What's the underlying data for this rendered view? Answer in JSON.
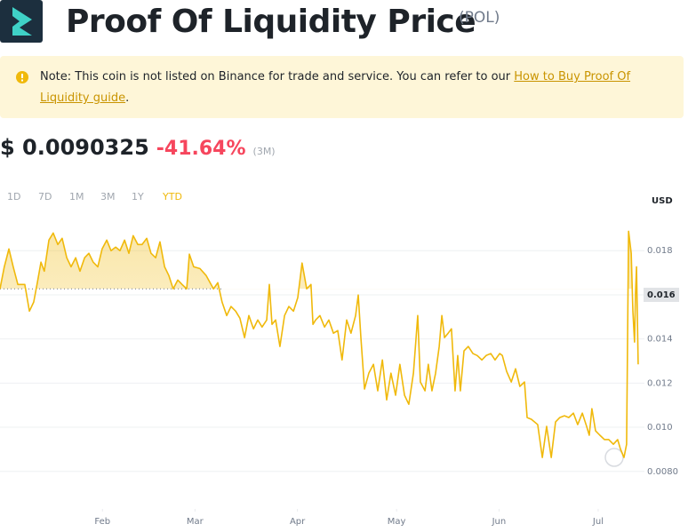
{
  "header": {
    "title": "Proof Of Liquidity Price",
    "symbol": "(POL)"
  },
  "note": {
    "text": "Note: This coin is not listed on Binance for trade and service. You can refer to our ",
    "link": "How to Buy Proof Of Liquidity guide",
    "end": "."
  },
  "price": {
    "value": "$ 0.0090325",
    "change": "-41.64%",
    "period": "(3M)"
  },
  "ranges": [
    "1D",
    "7D",
    "1M",
    "3M",
    "1Y",
    "YTD"
  ],
  "active_range": "YTD",
  "chart_data": {
    "type": "line",
    "y_unit": "USD",
    "color": "#f0b90b",
    "x": [
      0,
      1.3,
      2.7,
      4.0,
      5.4,
      7.5,
      8.9,
      10.2,
      11.3,
      12.4,
      13.4,
      14.8,
      16.1,
      17.5,
      18.8,
      20.2,
      21.5,
      22.9,
      24.2,
      25.6,
      26.9,
      28.2,
      29.6,
      30.9,
      32.3,
      33.6,
      35.0,
      36.3,
      37.7,
      39.0,
      40.3,
      41.7,
      43.0,
      44.4,
      45.7,
      47.1,
      48.4,
      49.8,
      51.1,
      52.4,
      53.8,
      55.1,
      56.5,
      57.3,
      58.6,
      60.5,
      62.4,
      64.6,
      65.9,
      67.2,
      68.6,
      69.9,
      71.3,
      72.6,
      74.0,
      75.3,
      76.7,
      78.0,
      79.3,
      80.7,
      81.5,
      82.3,
      83.4,
      84.7,
      86.1,
      87.4,
      88.8,
      90.1,
      91.4,
      92.8,
      94.1,
      94.7,
      95.5,
      96.8,
      98.2,
      99.5,
      100.9,
      102.2,
      103.5,
      104.9,
      106.2,
      107.6,
      108.4,
      109.2,
      110.3,
      111.6,
      113.0,
      114.3,
      115.7,
      117.0,
      118.3,
      119.7,
      121.0,
      122.4,
      123.7,
      125.1,
      126.4,
      127.2,
      128.6,
      129.6,
      130.7,
      131.8,
      132.9,
      133.7,
      134.5,
      135.6,
      136.6,
      137.7,
      138.5,
      139.3,
      140.4,
      141.7,
      143.1,
      144.4,
      145.8,
      147.1,
      148.5,
      149.8,
      151.2,
      152.0,
      153.3,
      154.7,
      156.0,
      157.3,
      158.7,
      159.5,
      160.8,
      162.7,
      164.1,
      165.4,
      166.8,
      168.1,
      169.4,
      170.8,
      172.1,
      173.5,
      174.8,
      176.2,
      177.5,
      178.3,
      179.1,
      180.2,
      181.5,
      182.9,
      184.2,
      185.6,
      186.9,
      187.7,
      188.8,
      189.6,
      190.2,
      191.0,
      191.5,
      192.0,
      192.3,
      192.6,
      193.1
    ],
    "values": [
      0.01627,
      0.01727,
      0.01808,
      0.01727,
      0.01647,
      0.01647,
      0.01526,
      0.01567,
      0.01655,
      0.01748,
      0.01707,
      0.01848,
      0.0188,
      0.01828,
      0.01856,
      0.01768,
      0.01727,
      0.01768,
      0.01707,
      0.01768,
      0.01788,
      0.01748,
      0.01727,
      0.01808,
      0.01848,
      0.018,
      0.01816,
      0.018,
      0.01848,
      0.01788,
      0.01868,
      0.01828,
      0.01828,
      0.01856,
      0.01788,
      0.01768,
      0.0184,
      0.01727,
      0.01687,
      0.01627,
      0.01667,
      0.01647,
      0.01627,
      0.01784,
      0.01727,
      0.01719,
      0.01687,
      0.01627,
      0.01655,
      0.01567,
      0.01506,
      0.01547,
      0.01526,
      0.01494,
      0.01406,
      0.01506,
      0.01446,
      0.01486,
      0.01454,
      0.01486,
      0.01647,
      0.01466,
      0.01486,
      0.01366,
      0.01506,
      0.01547,
      0.01526,
      0.01587,
      0.01744,
      0.01627,
      0.01647,
      0.01466,
      0.01486,
      0.01506,
      0.01454,
      0.01486,
      0.01426,
      0.01438,
      0.01305,
      0.01486,
      0.01426,
      0.01506,
      0.01599,
      0.01406,
      0.01173,
      0.01245,
      0.01285,
      0.01165,
      0.01305,
      0.01124,
      0.01245,
      0.01145,
      0.01285,
      0.01145,
      0.01104,
      0.01245,
      0.01506,
      0.01205,
      0.01165,
      0.01285,
      0.01165,
      0.01245,
      0.01366,
      0.01506,
      0.01406,
      0.01426,
      0.01446,
      0.01165,
      0.01325,
      0.01165,
      0.01346,
      0.01366,
      0.01334,
      0.01325,
      0.01305,
      0.01325,
      0.01334,
      0.01305,
      0.01334,
      0.01325,
      0.01253,
      0.01205,
      0.01265,
      0.01185,
      0.01205,
      0.01044,
      0.01036,
      0.01012,
      0.00863,
      0.01004,
      0.00863,
      0.01024,
      0.01044,
      0.01052,
      0.01044,
      0.01064,
      0.01012,
      0.01064,
      0.01004,
      0.00964,
      0.01084,
      0.00984,
      0.00964,
      0.00944,
      0.00944,
      0.00923,
      0.00944,
      0.00903,
      0.00863,
      0.00923,
      0.01888,
      0.01788,
      0.01526,
      0.01386,
      0.01607,
      0.01727,
      0.01285
    ],
    "xlim": [
      0,
      195
    ],
    "xticks": [
      {
        "value": 31,
        "label": "Feb"
      },
      {
        "value": 59,
        "label": "Mar"
      },
      {
        "value": 90,
        "label": "Apr"
      },
      {
        "value": 120,
        "label": "May"
      },
      {
        "value": 151,
        "label": "Jun"
      },
      {
        "value": 181,
        "label": "Jul"
      }
    ],
    "ylim": [
      0.0063,
      0.0197
    ],
    "yticks": [
      0.018,
      0.016,
      0.014,
      0.012,
      {
        "value": 0.01,
        "label": "0.010"
      },
      {
        "value": 0.008,
        "label": "0.0080"
      }
    ],
    "grid": true
  }
}
